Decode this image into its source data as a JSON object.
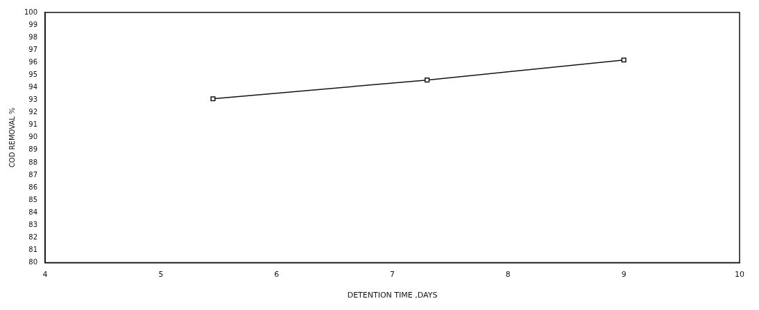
{
  "chart_data": {
    "type": "line",
    "xlabel": "DETENTION TIME ,DAYS",
    "ylabel": "COD REMOVAL %",
    "x": [
      5.45,
      7.3,
      9.0
    ],
    "series": [
      {
        "color": "#111111",
        "values": [
          93.1,
          94.6,
          96.2
        ]
      }
    ],
    "xlim": [
      4,
      10
    ],
    "xticks": [
      4,
      5,
      6,
      7,
      8,
      9,
      10
    ],
    "ylim": [
      80,
      100
    ],
    "yticks": [
      80,
      81,
      82,
      83,
      84,
      85,
      86,
      87,
      88,
      89,
      90,
      91,
      92,
      93,
      94,
      95,
      96,
      97,
      98,
      99,
      100
    ],
    "grid": false,
    "legend": false,
    "marker": "square",
    "line_style": "solid"
  }
}
